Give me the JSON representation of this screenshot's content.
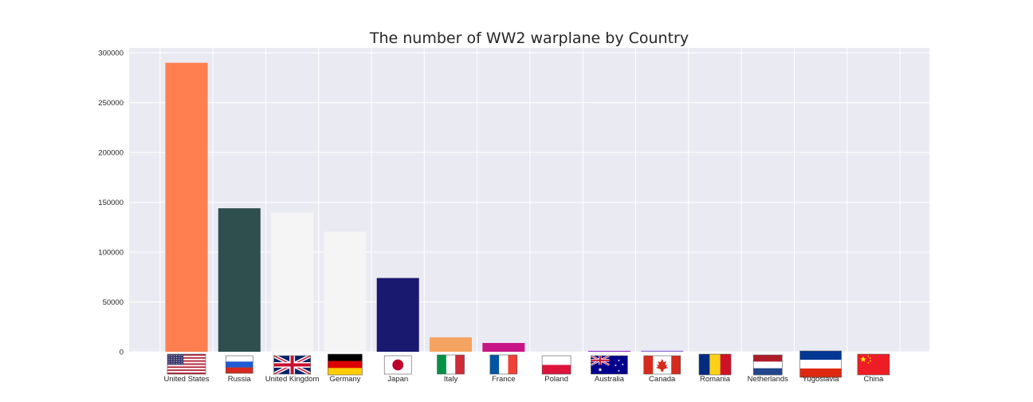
{
  "chart_data": {
    "type": "bar",
    "title": "The number of WW2 warplane by Country",
    "xlabel": "",
    "ylabel": "",
    "ylim": [
      0,
      305000
    ],
    "yticks": [
      "0",
      "50000",
      "100000",
      "150000",
      "200000",
      "250000",
      "300000"
    ],
    "grid": true,
    "categories": [
      "United States",
      "Russia",
      "United Kingdom",
      "Germany",
      "Japan",
      "Italy",
      "France",
      "Poland",
      "Australia",
      "Canada",
      "Romania",
      "Netherlands",
      "Yugoslavia",
      "China"
    ],
    "values": [
      290000,
      144000,
      139500,
      120500,
      74000,
      14500,
      8800,
      400,
      900,
      1000,
      200,
      200,
      200,
      200
    ],
    "colors": [
      "#ff7f50",
      "#2f4f4f",
      "#f5f5f5",
      "#f5f5f5",
      "#191970",
      "#f4a460",
      "#c71585",
      "#f5f5f5",
      "#9932cc",
      "#9370db",
      "#f5f5f5",
      "#f5f5f5",
      "#f5f5f5",
      "#f5f5f5"
    ],
    "flags": [
      "us-flag-icon",
      "russia-flag-icon",
      "uk-flag-icon",
      "germany-flag-icon",
      "japan-flag-icon",
      "italy-flag-icon",
      "france-flag-icon",
      "poland-flag-icon",
      "australia-flag-icon",
      "canada-flag-icon",
      "romania-flag-icon",
      "netherlands-flag-icon",
      "yugoslavia-flag-icon",
      "china-flag-icon"
    ]
  }
}
